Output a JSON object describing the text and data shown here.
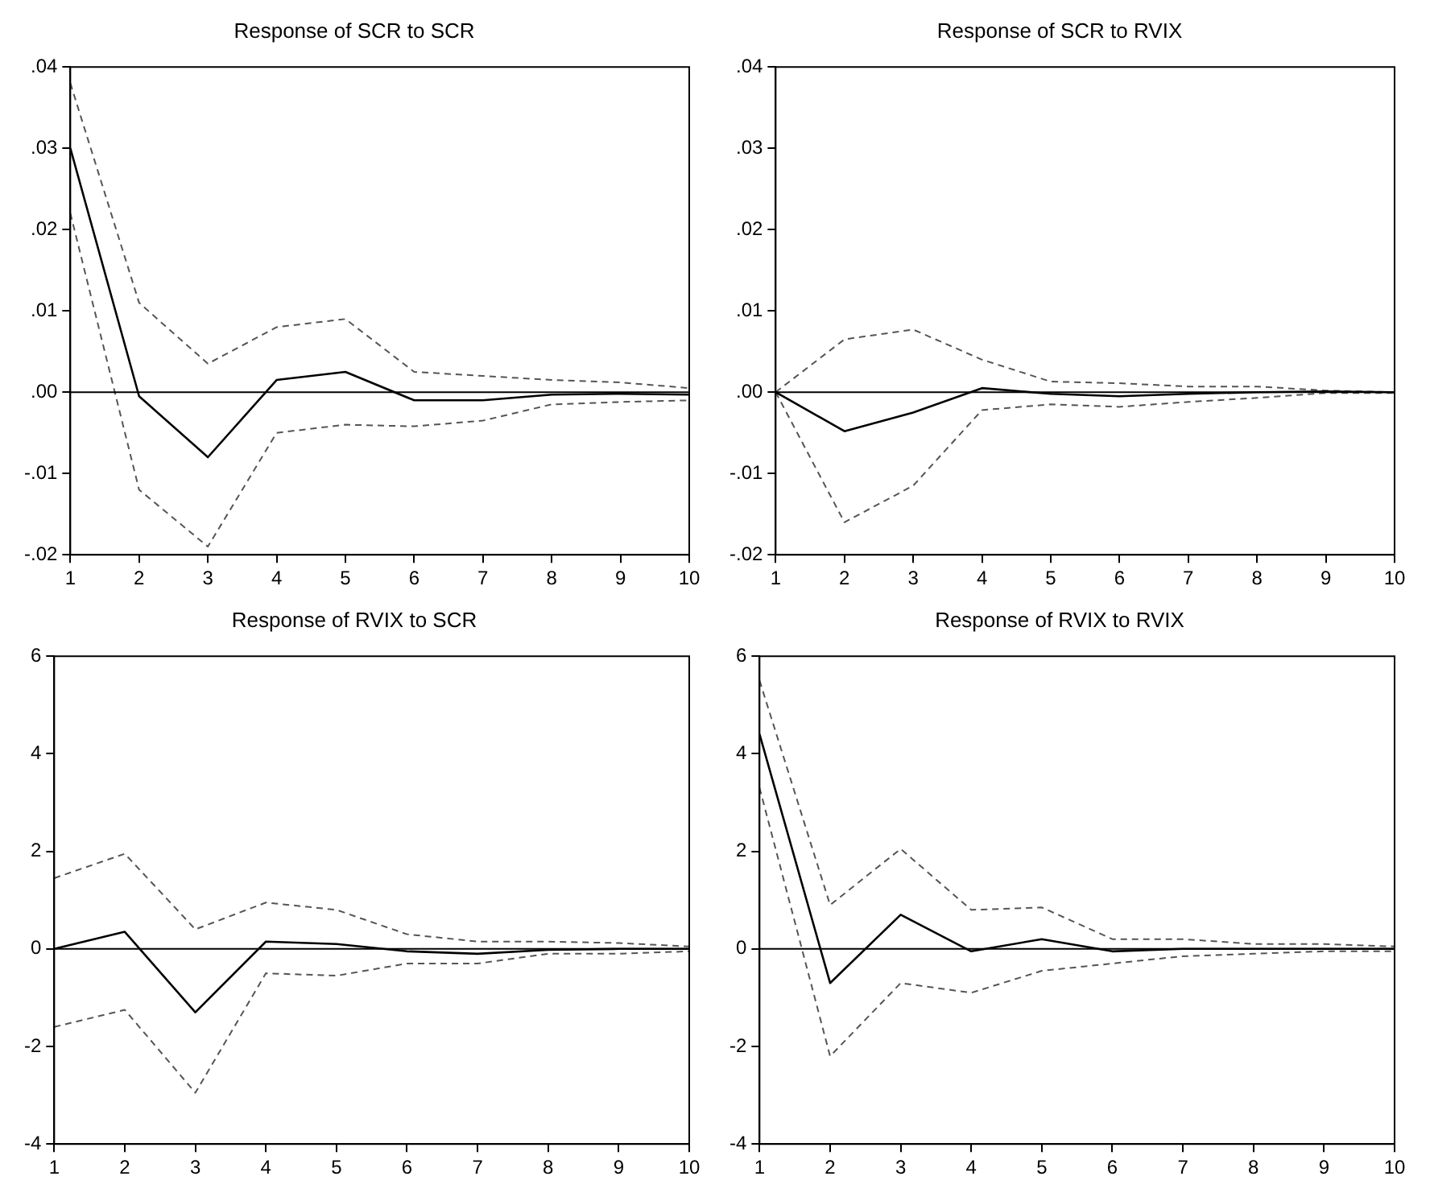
{
  "chart_data": [
    {
      "type": "line",
      "title": "Response of SCR to SCR",
      "x": [
        1,
        2,
        3,
        4,
        5,
        6,
        7,
        8,
        9,
        10
      ],
      "xlim": [
        1,
        10
      ],
      "xticks": [
        1,
        2,
        3,
        4,
        5,
        6,
        7,
        8,
        9,
        10
      ],
      "ylim": [
        -0.02,
        0.04
      ],
      "yticks": [
        {
          "value": -0.02,
          "label": "-.02"
        },
        {
          "value": -0.01,
          "label": "-.01"
        },
        {
          "value": 0,
          "label": ".00"
        },
        {
          "value": 0.01,
          "label": ".01"
        },
        {
          "value": 0.02,
          "label": ".02"
        },
        {
          "value": 0.03,
          "label": ".03"
        },
        {
          "value": 0.04,
          "label": ".04"
        }
      ],
      "grid": false,
      "legend": false,
      "marker": "none",
      "ref_lines": [
        {
          "axis": "y",
          "value": 0,
          "color": "#000000",
          "line_style": "solid"
        }
      ],
      "series": [
        {
          "color": "#000000",
          "line_style": "solid",
          "values": [
            0.03,
            -0.0005,
            -0.008,
            0.0015,
            0.0025,
            -0.001,
            -0.001,
            -0.0003,
            -0.0002,
            -0.0003
          ]
        },
        {
          "color": "#555555",
          "line_style": "dashed",
          "values": [
            0.038,
            0.011,
            0.0035,
            0.008,
            0.009,
            0.0025,
            0.002,
            0.0015,
            0.0012,
            0.0005
          ]
        },
        {
          "color": "#555555",
          "line_style": "dashed",
          "values": [
            0.022,
            -0.012,
            -0.019,
            -0.005,
            -0.004,
            -0.0042,
            -0.0035,
            -0.0015,
            -0.0012,
            -0.001
          ]
        }
      ]
    },
    {
      "type": "line",
      "title": "Response of SCR to RVIX",
      "x": [
        1,
        2,
        3,
        4,
        5,
        6,
        7,
        8,
        9,
        10
      ],
      "xlim": [
        1,
        10
      ],
      "xticks": [
        1,
        2,
        3,
        4,
        5,
        6,
        7,
        8,
        9,
        10
      ],
      "ylim": [
        -0.02,
        0.04
      ],
      "yticks": [
        {
          "value": -0.02,
          "label": "-.02"
        },
        {
          "value": -0.01,
          "label": "-.01"
        },
        {
          "value": 0,
          "label": ".00"
        },
        {
          "value": 0.01,
          "label": ".01"
        },
        {
          "value": 0.02,
          "label": ".02"
        },
        {
          "value": 0.03,
          "label": ".03"
        },
        {
          "value": 0.04,
          "label": ".04"
        }
      ],
      "grid": false,
      "legend": false,
      "marker": "none",
      "ref_lines": [
        {
          "axis": "y",
          "value": 0,
          "color": "#000000",
          "line_style": "solid"
        }
      ],
      "series": [
        {
          "color": "#000000",
          "line_style": "solid",
          "values": [
            0,
            -0.0048,
            -0.0025,
            0.0005,
            -0.0002,
            -0.0005,
            -0.0002,
            0,
            0.0001,
            0
          ]
        },
        {
          "color": "#555555",
          "line_style": "dashed",
          "values": [
            0,
            0.0065,
            0.0077,
            0.004,
            0.0013,
            0.0011,
            0.0007,
            0.0007,
            0.0002,
            0
          ]
        },
        {
          "color": "#555555",
          "line_style": "dashed",
          "values": [
            0,
            -0.016,
            -0.0115,
            -0.0022,
            -0.0015,
            -0.0018,
            -0.0012,
            -0.0007,
            -0.0001,
            -0.0001
          ]
        }
      ]
    },
    {
      "type": "line",
      "title": "Response of RVIX to SCR",
      "x": [
        1,
        2,
        3,
        4,
        5,
        6,
        7,
        8,
        9,
        10
      ],
      "xlim": [
        1,
        10
      ],
      "xticks": [
        1,
        2,
        3,
        4,
        5,
        6,
        7,
        8,
        9,
        10
      ],
      "ylim": [
        -4,
        6
      ],
      "yticks": [
        -4,
        -2,
        0,
        2,
        4,
        6
      ],
      "grid": false,
      "legend": false,
      "marker": "none",
      "ref_lines": [
        {
          "axis": "y",
          "value": 0,
          "color": "#000000",
          "line_style": "solid"
        }
      ],
      "series": [
        {
          "color": "#000000",
          "line_style": "solid",
          "values": [
            0,
            0.35,
            -1.3,
            0.15,
            0.1,
            -0.05,
            -0.1,
            -0.02,
            0,
            0
          ]
        },
        {
          "color": "#555555",
          "line_style": "dashed",
          "values": [
            1.45,
            1.95,
            0.4,
            0.95,
            0.8,
            0.3,
            0.15,
            0.15,
            0.12,
            0.05
          ]
        },
        {
          "color": "#555555",
          "line_style": "dashed",
          "values": [
            -1.6,
            -1.25,
            -2.95,
            -0.5,
            -0.55,
            -0.3,
            -0.3,
            -0.1,
            -0.1,
            -0.05
          ]
        }
      ]
    },
    {
      "type": "line",
      "title": "Response of RVIX to RVIX",
      "x": [
        1,
        2,
        3,
        4,
        5,
        6,
        7,
        8,
        9,
        10
      ],
      "xlim": [
        1,
        10
      ],
      "xticks": [
        1,
        2,
        3,
        4,
        5,
        6,
        7,
        8,
        9,
        10
      ],
      "ylim": [
        -4,
        6
      ],
      "yticks": [
        -4,
        -2,
        0,
        2,
        4,
        6
      ],
      "grid": false,
      "legend": false,
      "marker": "none",
      "ref_lines": [
        {
          "axis": "y",
          "value": 0,
          "color": "#000000",
          "line_style": "solid"
        }
      ],
      "series": [
        {
          "color": "#000000",
          "line_style": "solid",
          "values": [
            4.4,
            -0.7,
            0.7,
            -0.05,
            0.2,
            -0.05,
            0,
            0,
            0,
            0
          ]
        },
        {
          "color": "#555555",
          "line_style": "dashed",
          "values": [
            5.5,
            0.9,
            2.05,
            0.8,
            0.85,
            0.2,
            0.2,
            0.1,
            0.1,
            0.05
          ]
        },
        {
          "color": "#555555",
          "line_style": "dashed",
          "values": [
            3.3,
            -2.2,
            -0.7,
            -0.9,
            -0.45,
            -0.3,
            -0.15,
            -0.1,
            -0.05,
            -0.05
          ]
        }
      ]
    }
  ]
}
